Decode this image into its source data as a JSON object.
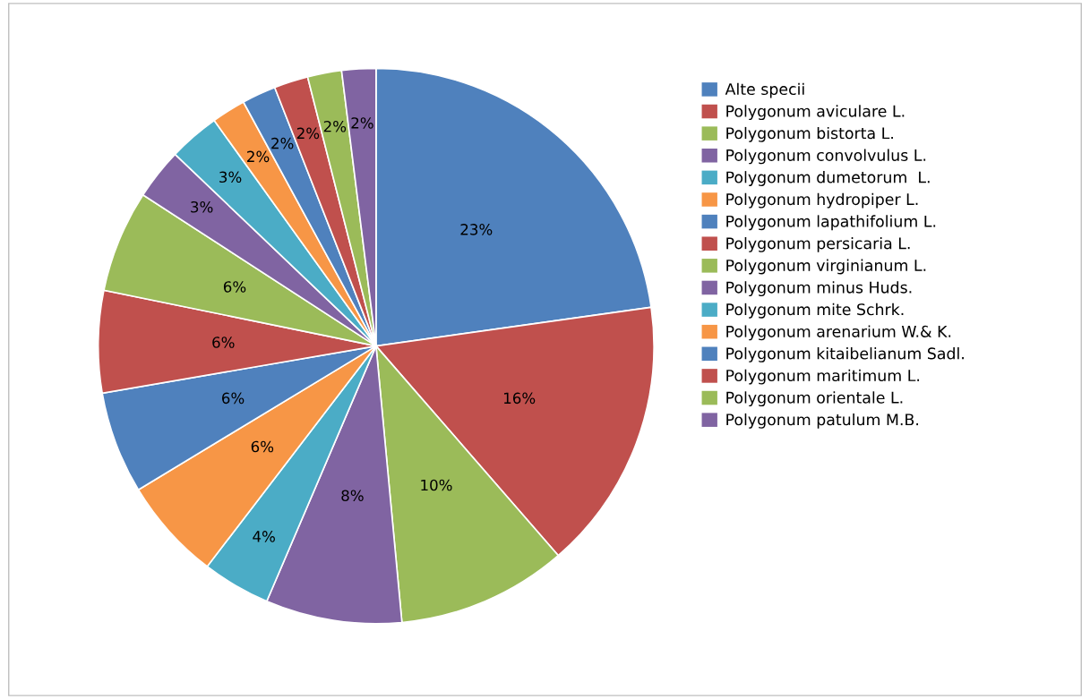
{
  "chart_data": {
    "type": "pie",
    "categories": [
      "Alte specii",
      "Polygonum aviculare L.",
      "Polygonum bistorta L.",
      "Polygonum convolvulus L.",
      "Polygonum dumetorum  L.",
      "Polygonum hydropiper L.",
      "Polygonum lapathifolium L.",
      "Polygonum persicaria L.",
      "Polygonum virginianum L.",
      "Polygonum minus Huds.",
      "Polygonum mite Schrk.",
      "Polygonum arenarium W.& K.",
      "Polygonum kitaibelianum Sadl.",
      "Polygonum maritimum L.",
      "Polygonum orientale L.",
      "Polygonum patulum M.B."
    ],
    "values": [
      23,
      16,
      10,
      8,
      4,
      6,
      6,
      6,
      6,
      3,
      3,
      2,
      2,
      2,
      2,
      2
    ],
    "value_labels": [
      "23%",
      "16%",
      "10%",
      "8%",
      "4%",
      "6%",
      "6%",
      "6%",
      "6%",
      "3%",
      "3%",
      "2%",
      "2%",
      "2%",
      "2%",
      "2%"
    ],
    "colors": [
      "#4f81bd",
      "#c0504d",
      "#9bbb59",
      "#8064a2",
      "#4bacc6",
      "#f79646",
      "#4f81bd",
      "#c0504d",
      "#9bbb59",
      "#8064a2",
      "#4bacc6",
      "#f79646",
      "#4f81bd",
      "#c0504d",
      "#9bbb59",
      "#8064a2"
    ],
    "legend": "right"
  }
}
